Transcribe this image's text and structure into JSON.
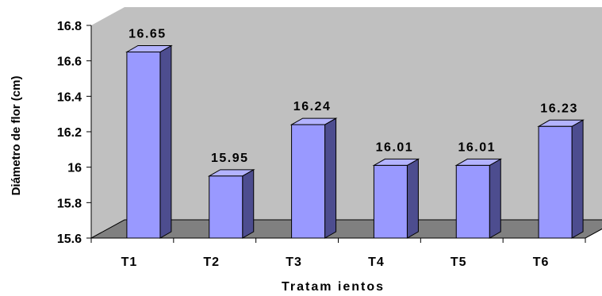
{
  "chart_data": {
    "type": "bar",
    "style": "3d-column",
    "categories": [
      "T1",
      "T2",
      "T3",
      "T4",
      "T5",
      "T6"
    ],
    "values": [
      16.65,
      15.95,
      16.24,
      16.01,
      16.01,
      16.23
    ],
    "data_labels": [
      "16.65",
      "15.95",
      "16.24",
      "16.01",
      "16.01",
      "16.23"
    ],
    "title": "",
    "xlabel": "Tratam ientos",
    "ylabel": "Diámetro de flor (cm)",
    "ylim": [
      15.6,
      16.8
    ],
    "yticks": [
      15.6,
      15.8,
      16,
      16.2,
      16.4,
      16.6,
      16.8
    ],
    "ytick_labels": [
      "15.6",
      "15.8",
      "16",
      "16.2",
      "16.4",
      "16.6",
      "16.8"
    ],
    "grid": false,
    "legend": "none",
    "colors": {
      "bar_front": "#9999ff",
      "bar_top": "#b3b3ff",
      "bar_side": "#4d4d8f",
      "back_wall": "#c0c0c0",
      "floor": "#808080",
      "axis": "#000000"
    }
  }
}
